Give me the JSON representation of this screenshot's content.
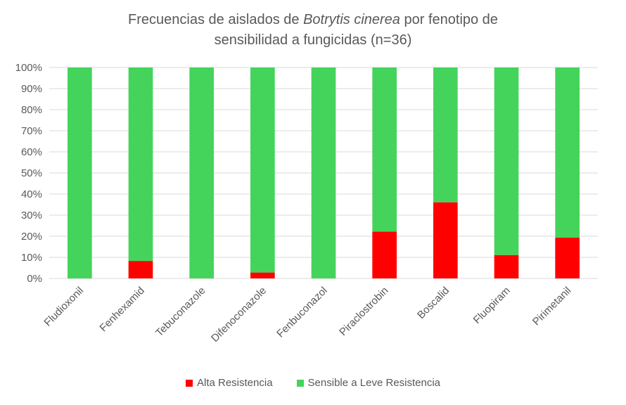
{
  "chart_data": {
    "type": "bar",
    "stacked": true,
    "title_parts": [
      "Frecuencias de aislados de ",
      "Botrytis cinerea",
      "  por fenotipo de",
      "sensibilidad a fungicidas (n=36)"
    ],
    "categories": [
      "Fludioxonil",
      "Fenhexamid",
      "Tebuconazole",
      "Difenoconazole",
      "Fenbuconazol",
      "Piraclostrobin",
      "Boscalid",
      "Fluopiram",
      "Pirimetanil"
    ],
    "series": [
      {
        "name": "Alta Resistencia",
        "color": "#ff0000",
        "values": [
          0,
          8.3,
          0,
          2.8,
          0,
          22.2,
          36.1,
          11.1,
          19.4
        ]
      },
      {
        "name": "Sensible a Leve Resistencia",
        "color": "#44d45c",
        "values": [
          100,
          91.7,
          100,
          97.2,
          100,
          77.8,
          63.9,
          88.9,
          80.6
        ]
      }
    ],
    "y_ticks": [
      "0%",
      "10%",
      "20%",
      "30%",
      "40%",
      "50%",
      "60%",
      "70%",
      "80%",
      "90%",
      "100%"
    ],
    "ylim": [
      0,
      100
    ],
    "grid": true,
    "legend_position": "bottom"
  }
}
